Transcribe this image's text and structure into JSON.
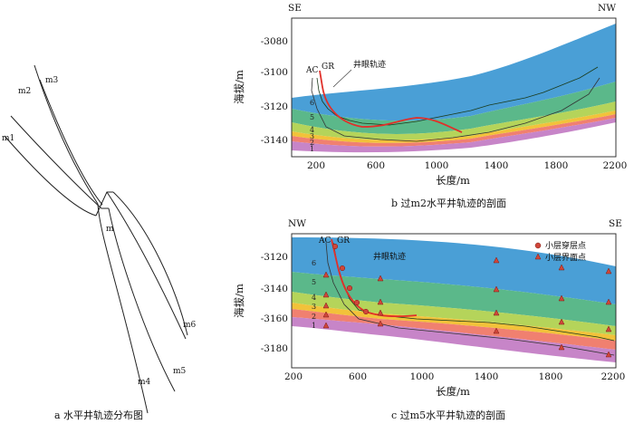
{
  "panel_a": {
    "caption": "a  水平井轨迹分布图",
    "wells": [
      "m1",
      "m2",
      "m3",
      "m",
      "m4",
      "m5",
      "m6"
    ]
  },
  "panel_b": {
    "caption": "b  过m2水平井轨迹的剖面",
    "dir_left": "SE",
    "dir_right": "NW",
    "ylabel": "海拔/m",
    "xlabel": "长度/m",
    "x_ticks": [
      "200",
      "600",
      "1000",
      "1400",
      "1800",
      "2200"
    ],
    "y_ticks": [
      "-3080",
      "-3100",
      "-3120",
      "-3140"
    ],
    "log_labels": [
      "AC",
      "GR"
    ],
    "trajectory_label": "井眼轨迹",
    "layers": [
      "6",
      "5",
      "4",
      "3",
      "2",
      "1"
    ]
  },
  "panel_c": {
    "caption": "c  过m5水平井轨迹的剖面",
    "dir_left": "NW",
    "dir_right": "SE",
    "ylabel": "海拔/m",
    "xlabel": "长度/m",
    "x_ticks": [
      "200",
      "600",
      "1000",
      "1400",
      "1800",
      "2200"
    ],
    "y_ticks": [
      "-3120",
      "-3140",
      "-3160",
      "-3180"
    ],
    "log_labels": [
      "AC",
      "GR"
    ],
    "trajectory_label": "井眼轨迹",
    "layers": [
      "6",
      "5",
      "4",
      "3",
      "2",
      "1"
    ],
    "legend": [
      "小层穿层点",
      "小层界面点"
    ]
  },
  "colors": {
    "layer6": "#4a9fd6",
    "layer5": "#5bb88a",
    "layer4": "#b5d45a",
    "layer3": "#f2c23a",
    "layer2": "#f08070",
    "layer1": "#c785c8",
    "trajectory": "#e0302a",
    "marker": "#d0463a"
  }
}
